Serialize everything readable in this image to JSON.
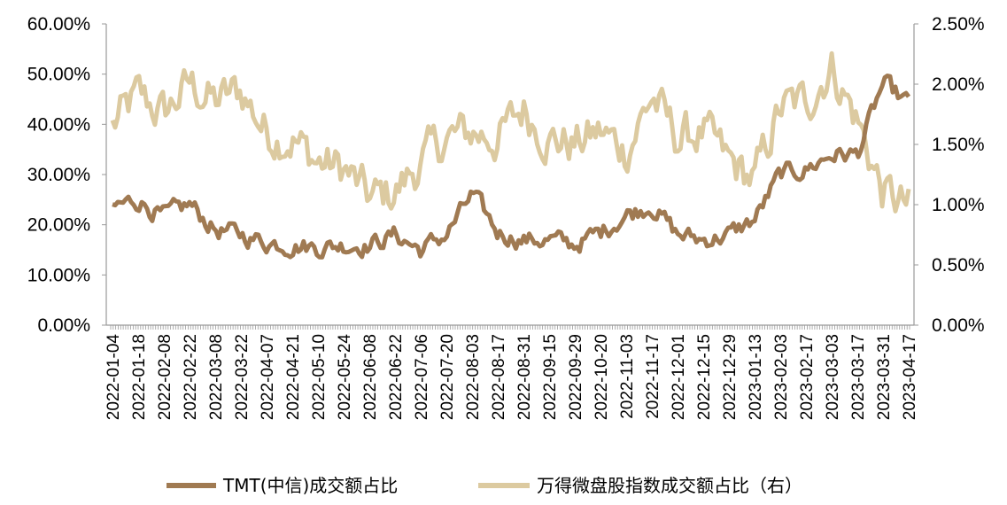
{
  "chart_data": {
    "type": "line",
    "title": "",
    "xlabel": "",
    "ylabel": "",
    "y_left": {
      "range": [
        0,
        60
      ],
      "ticks": [
        "0.00%",
        "10.00%",
        "20.00%",
        "30.00%",
        "40.00%",
        "50.00%",
        "60.00%"
      ]
    },
    "y_right": {
      "range": [
        0,
        2.5
      ],
      "ticks": [
        "0.00%",
        "0.50%",
        "1.00%",
        "1.50%",
        "2.00%",
        "2.50%"
      ]
    },
    "x_ticks": [
      "2022-01-04",
      "2022-01-18",
      "2022-02-08",
      "2022-02-22",
      "2022-03-08",
      "2022-03-22",
      "2022-04-07",
      "2022-04-21",
      "2022-05-10",
      "2022-05-24",
      "2022-06-08",
      "2022-06-22",
      "2022-07-06",
      "2022-07-20",
      "2022-08-03",
      "2022-08-17",
      "2022-08-31",
      "2022-09-15",
      "2022-09-29",
      "2022-10-20",
      "2022-11-03",
      "2022-11-17",
      "2022-12-01",
      "2022-12-15",
      "2022-12-29",
      "2023-01-13",
      "2023-02-03",
      "2023-02-17",
      "2023-03-03",
      "2023-03-17",
      "2023-03-31",
      "2023-04-17"
    ],
    "grid": false,
    "legend_position": "bottom",
    "series": [
      {
        "name": "TMT(中信)成交额占比",
        "axis": "left",
        "color": "#a07a52",
        "x": [
          "2022-01-04",
          "2022-01-18",
          "2022-02-08",
          "2022-02-22",
          "2022-03-08",
          "2022-03-22",
          "2022-04-07",
          "2022-04-21",
          "2022-05-10",
          "2022-05-24",
          "2022-06-08",
          "2022-06-22",
          "2022-07-06",
          "2022-07-20",
          "2022-08-03",
          "2022-08-17",
          "2022-08-31",
          "2022-09-15",
          "2022-09-29",
          "2022-10-20",
          "2022-11-03",
          "2022-11-17",
          "2022-12-01",
          "2022-12-15",
          "2022-12-29",
          "2023-01-13",
          "2023-02-03",
          "2023-02-17",
          "2023-03-03",
          "2023-03-17",
          "2023-03-31",
          "2023-04-17"
        ],
        "values": [
          23.5,
          25,
          21.5,
          24,
          19,
          18,
          16.5,
          16,
          15.5,
          16,
          16,
          18,
          15,
          18,
          26,
          18.5,
          17,
          17,
          16,
          18.5,
          22,
          24,
          18,
          17,
          18,
          21,
          30,
          31,
          34,
          34,
          48,
          44
        ]
      },
      {
        "name": "万得微盘股指数成交额占比（右）",
        "axis": "right",
        "color": "#dccaa0",
        "x": [
          "2022-01-04",
          "2022-01-18",
          "2022-02-08",
          "2022-02-22",
          "2022-03-08",
          "2022-03-22",
          "2022-04-07",
          "2022-04-21",
          "2022-05-10",
          "2022-05-24",
          "2022-06-08",
          "2022-06-22",
          "2022-07-06",
          "2022-07-20",
          "2022-08-03",
          "2022-08-17",
          "2022-08-31",
          "2022-09-15",
          "2022-09-29",
          "2022-10-20",
          "2022-11-03",
          "2022-11-17",
          "2022-12-01",
          "2022-12-15",
          "2022-12-29",
          "2023-01-13",
          "2023-02-03",
          "2023-02-17",
          "2023-03-03",
          "2023-03-17",
          "2023-03-31",
          "2023-04-17"
        ],
        "values": [
          1.65,
          1.9,
          1.75,
          2.0,
          1.85,
          1.95,
          1.6,
          1.55,
          1.35,
          1.3,
          1.05,
          1.1,
          1.35,
          1.55,
          1.6,
          1.55,
          1.8,
          1.55,
          1.5,
          1.6,
          1.45,
          1.9,
          1.55,
          1.6,
          1.35,
          1.2,
          1.8,
          1.85,
          2.15,
          1.7,
          1.1,
          0.97
        ]
      }
    ]
  }
}
